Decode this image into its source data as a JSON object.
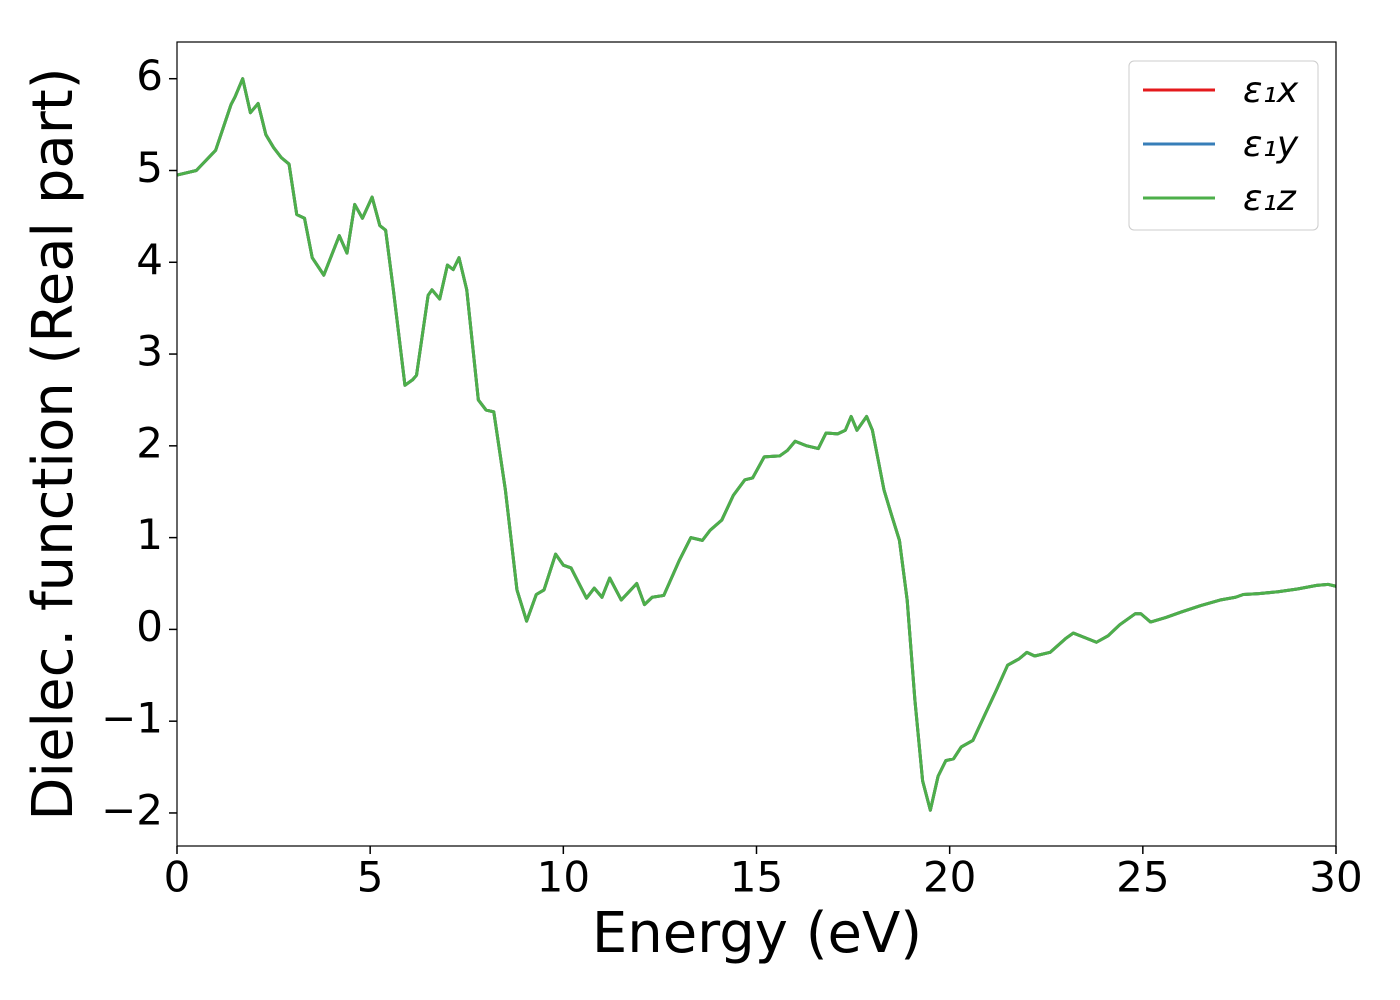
{
  "chart_data": {
    "type": "line",
    "xlabel": "Energy (eV)",
    "ylabel": "Dielec. function (Real part)",
    "xlim": [
      0,
      30
    ],
    "ylim": [
      -2.36,
      6.4
    ],
    "xticks": [
      0,
      5,
      10,
      15,
      20,
      25,
      30
    ],
    "yticks": [
      {
        "value": -2,
        "label": "−2"
      },
      {
        "value": -1,
        "label": "−1"
      },
      0,
      1,
      2,
      3,
      4,
      5,
      6
    ],
    "grid": false,
    "legend": "upper right",
    "x": [
      0,
      0.5,
      1.0,
      1.4,
      1.5,
      1.7,
      1.9,
      2.1,
      2.3,
      2.5,
      2.7,
      2.9,
      3.1,
      3.3,
      3.5,
      3.8,
      4.2,
      4.4,
      4.6,
      4.8,
      5.05,
      5.25,
      5.4,
      5.6,
      5.9,
      6.1,
      6.2,
      6.5,
      6.6,
      6.8,
      7.0,
      7.15,
      7.3,
      7.5,
      7.8,
      8.0,
      8.2,
      8.5,
      8.8,
      9.05,
      9.3,
      9.5,
      9.8,
      10.0,
      10.2,
      10.6,
      10.8,
      11.0,
      11.2,
      11.5,
      11.9,
      12.1,
      12.3,
      12.6,
      13.0,
      13.3,
      13.6,
      13.8,
      14.1,
      14.4,
      14.7,
      14.9,
      15.2,
      15.6,
      15.8,
      16.0,
      16.3,
      16.6,
      16.8,
      17.1,
      17.3,
      17.45,
      17.6,
      17.85,
      18.0,
      18.3,
      18.5,
      18.7,
      18.9,
      19.1,
      19.3,
      19.5,
      19.7,
      19.9,
      20.1,
      20.3,
      20.6,
      20.9,
      21.2,
      21.5,
      21.8,
      22.0,
      22.2,
      22.6,
      23.0,
      23.2,
      23.5,
      23.8,
      24.1,
      24.4,
      24.8,
      24.95,
      25.2,
      25.6,
      26.0,
      26.5,
      27.0,
      27.4,
      27.6,
      28.0,
      28.5,
      29.0,
      29.5,
      29.8,
      30.0
    ],
    "series": [
      {
        "name": "ε₁x",
        "color": "#e41a1c",
        "values": [
          4.95,
          5.0,
          5.22,
          5.72,
          5.8,
          6.0,
          5.63,
          5.73,
          5.39,
          5.25,
          5.14,
          5.07,
          4.52,
          4.48,
          4.05,
          3.86,
          4.29,
          4.1,
          4.63,
          4.48,
          4.71,
          4.4,
          4.35,
          3.7,
          2.66,
          2.72,
          2.77,
          3.64,
          3.7,
          3.6,
          3.97,
          3.92,
          4.05,
          3.7,
          2.5,
          2.39,
          2.37,
          1.52,
          0.43,
          0.09,
          0.38,
          0.43,
          0.82,
          0.7,
          0.67,
          0.34,
          0.45,
          0.35,
          0.56,
          0.32,
          0.5,
          0.27,
          0.35,
          0.37,
          0.75,
          1.0,
          0.97,
          1.08,
          1.19,
          1.46,
          1.63,
          1.65,
          1.88,
          1.89,
          1.95,
          2.05,
          2.0,
          1.97,
          2.14,
          2.13,
          2.17,
          2.32,
          2.17,
          2.32,
          2.17,
          1.52,
          1.24,
          0.97,
          0.32,
          -0.77,
          -1.65,
          -1.97,
          -1.6,
          -1.43,
          -1.41,
          -1.28,
          -1.21,
          -0.94,
          -0.67,
          -0.39,
          -0.32,
          -0.25,
          -0.29,
          -0.25,
          -0.1,
          -0.04,
          -0.09,
          -0.14,
          -0.07,
          0.05,
          0.17,
          0.17,
          0.08,
          0.13,
          0.19,
          0.26,
          0.32,
          0.35,
          0.38,
          0.39,
          0.41,
          0.44,
          0.48,
          0.49,
          0.47
        ]
      },
      {
        "name": "ε₁y",
        "color": "#377eb8",
        "values": [
          4.95,
          5.0,
          5.22,
          5.72,
          5.8,
          6.0,
          5.63,
          5.73,
          5.39,
          5.25,
          5.14,
          5.07,
          4.52,
          4.48,
          4.05,
          3.86,
          4.29,
          4.1,
          4.63,
          4.48,
          4.71,
          4.4,
          4.35,
          3.7,
          2.66,
          2.72,
          2.77,
          3.64,
          3.7,
          3.6,
          3.97,
          3.92,
          4.05,
          3.7,
          2.5,
          2.39,
          2.37,
          1.52,
          0.43,
          0.09,
          0.38,
          0.43,
          0.82,
          0.7,
          0.67,
          0.34,
          0.45,
          0.35,
          0.56,
          0.32,
          0.5,
          0.27,
          0.35,
          0.37,
          0.75,
          1.0,
          0.97,
          1.08,
          1.19,
          1.46,
          1.63,
          1.65,
          1.88,
          1.89,
          1.95,
          2.05,
          2.0,
          1.97,
          2.14,
          2.13,
          2.17,
          2.32,
          2.17,
          2.32,
          2.17,
          1.52,
          1.24,
          0.97,
          0.32,
          -0.77,
          -1.65,
          -1.97,
          -1.6,
          -1.43,
          -1.41,
          -1.28,
          -1.21,
          -0.94,
          -0.67,
          -0.39,
          -0.32,
          -0.25,
          -0.29,
          -0.25,
          -0.1,
          -0.04,
          -0.09,
          -0.14,
          -0.07,
          0.05,
          0.17,
          0.17,
          0.08,
          0.13,
          0.19,
          0.26,
          0.32,
          0.35,
          0.38,
          0.39,
          0.41,
          0.44,
          0.48,
          0.49,
          0.47
        ]
      },
      {
        "name": "ε₁z",
        "color": "#4daf4a",
        "values": [
          4.95,
          5.0,
          5.22,
          5.72,
          5.8,
          6.0,
          5.63,
          5.73,
          5.39,
          5.25,
          5.14,
          5.07,
          4.52,
          4.48,
          4.05,
          3.86,
          4.29,
          4.1,
          4.63,
          4.48,
          4.71,
          4.4,
          4.35,
          3.7,
          2.66,
          2.72,
          2.77,
          3.64,
          3.7,
          3.6,
          3.97,
          3.92,
          4.05,
          3.7,
          2.5,
          2.39,
          2.37,
          1.52,
          0.43,
          0.09,
          0.38,
          0.43,
          0.82,
          0.7,
          0.67,
          0.34,
          0.45,
          0.35,
          0.56,
          0.32,
          0.5,
          0.27,
          0.35,
          0.37,
          0.75,
          1.0,
          0.97,
          1.08,
          1.19,
          1.46,
          1.63,
          1.65,
          1.88,
          1.89,
          1.95,
          2.05,
          2.0,
          1.97,
          2.14,
          2.13,
          2.17,
          2.32,
          2.17,
          2.32,
          2.17,
          1.52,
          1.24,
          0.97,
          0.32,
          -0.77,
          -1.65,
          -1.97,
          -1.6,
          -1.43,
          -1.41,
          -1.28,
          -1.21,
          -0.94,
          -0.67,
          -0.39,
          -0.32,
          -0.25,
          -0.29,
          -0.25,
          -0.1,
          -0.04,
          -0.09,
          -0.14,
          -0.07,
          0.05,
          0.17,
          0.17,
          0.08,
          0.13,
          0.19,
          0.26,
          0.32,
          0.35,
          0.38,
          0.39,
          0.41,
          0.44,
          0.48,
          0.49,
          0.47
        ]
      }
    ]
  }
}
